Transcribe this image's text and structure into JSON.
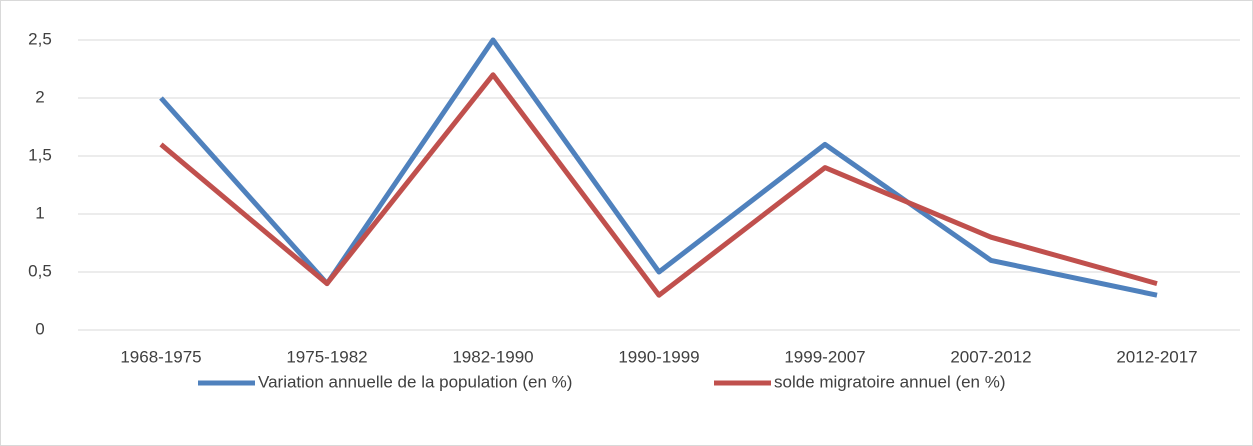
{
  "chart_data": {
    "type": "line",
    "categories": [
      "1968-1975",
      "1975-1982",
      "1982-1990",
      "1990-1999",
      "1999-2007",
      "2007-2012",
      "2012-2017"
    ],
    "series": [
      {
        "name": "Variation annuelle de la population (en %)",
        "color": "#4f81bd",
        "values": [
          2,
          0.4,
          2.5,
          0.5,
          1.6,
          0.6,
          0.3
        ]
      },
      {
        "name": "solde migratoire annuel (en %)",
        "color": "#c0504d",
        "values": [
          1.6,
          0.4,
          2.2,
          0.3,
          1.4,
          0.8,
          0.4
        ]
      }
    ],
    "ylim": [
      0,
      2.5
    ],
    "yticks": [
      0,
      {
        "value": 0.5,
        "label": "0,5"
      },
      1,
      {
        "value": 1.5,
        "label": "1,5"
      },
      2,
      {
        "value": 2.5,
        "label": "2,5"
      }
    ],
    "grid": true,
    "legend": "bottom"
  }
}
